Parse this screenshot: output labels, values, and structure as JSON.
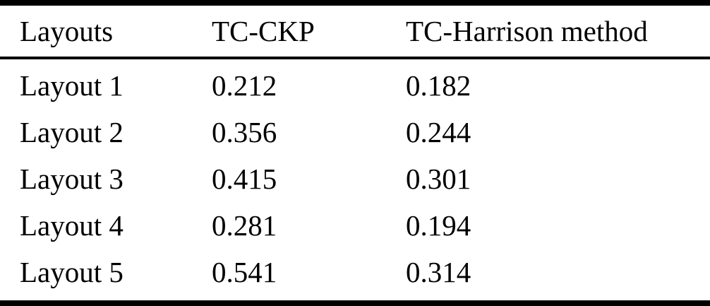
{
  "table": {
    "columns": [
      "Layouts",
      "TC-CKP",
      "TC-Harrison method"
    ],
    "rows": [
      [
        "Layout 1",
        "0.212",
        "0.182"
      ],
      [
        "Layout 2",
        "0.356",
        "0.244"
      ],
      [
        "Layout 3",
        "0.415",
        "0.301"
      ],
      [
        "Layout 4",
        "0.281",
        "0.194"
      ],
      [
        "Layout 5",
        "0.541",
        "0.314"
      ]
    ]
  },
  "chart_data": {
    "type": "table",
    "title": "",
    "categories": [
      "Layout 1",
      "Layout 2",
      "Layout 3",
      "Layout 4",
      "Layout 5"
    ],
    "series": [
      {
        "name": "TC-CKP",
        "values": [
          0.212,
          0.356,
          0.415,
          0.281,
          0.541
        ]
      },
      {
        "name": "TC-Harrison method",
        "values": [
          0.182,
          0.244,
          0.301,
          0.194,
          0.314
        ]
      }
    ]
  },
  "colors": {
    "text": "#000000",
    "rule": "#000000",
    "background": "#ffffff"
  }
}
